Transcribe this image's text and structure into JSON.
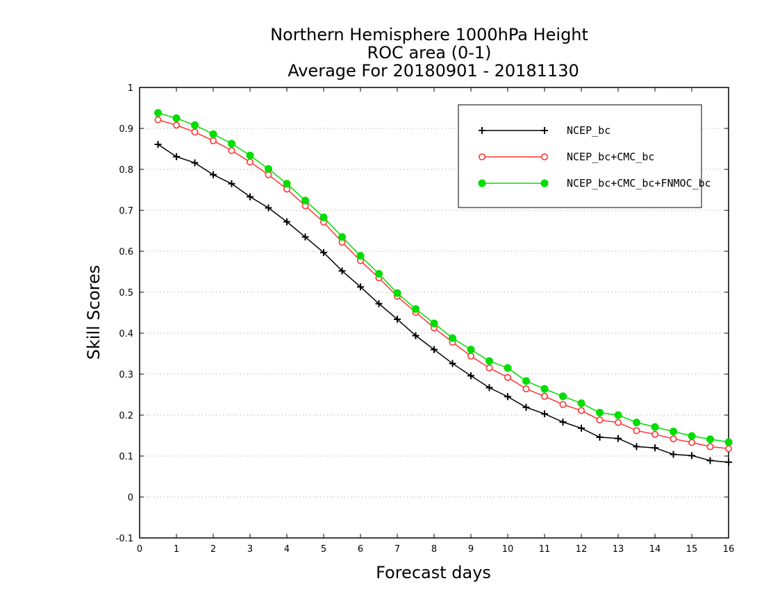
{
  "chart_data": {
    "type": "line",
    "title": [
      "Northern Hemisphere 1000hPa Height",
      "ROC area (0-1)",
      "Average For 20180901 - 20181130"
    ],
    "xlabel": "Forecast days",
    "ylabel": "Skill Scores",
    "xlim": [
      0,
      16
    ],
    "ylim": [
      -0.1,
      1
    ],
    "x_ticks": [
      "0",
      "1",
      "2",
      "3",
      "4",
      "5",
      "6",
      "7",
      "8",
      "9",
      "10",
      "11",
      "12",
      "13",
      "14",
      "15",
      "16"
    ],
    "y_ticks": [
      "-0.1",
      "0",
      "0.1",
      "0.2",
      "0.3",
      "0.4",
      "0.5",
      "0.6",
      "0.7",
      "0.8",
      "0.9",
      "1"
    ],
    "grid": "horizontal dotted",
    "legend_position": "top-right",
    "x": [
      0.5,
      1,
      1.5,
      2,
      2.5,
      3,
      3.5,
      4,
      4.5,
      5,
      5.5,
      6,
      6.5,
      7,
      7.5,
      8,
      8.5,
      9,
      9.5,
      10,
      10.5,
      11,
      11.5,
      12,
      12.5,
      13,
      13.5,
      14,
      14.5,
      15,
      15.5,
      16
    ],
    "series": [
      {
        "name": "NCEP_bc",
        "color": "#000000",
        "marker": "plus",
        "values": [
          0.861,
          0.831,
          0.816,
          0.787,
          0.765,
          0.733,
          0.706,
          0.672,
          0.635,
          0.597,
          0.552,
          0.513,
          0.472,
          0.434,
          0.394,
          0.36,
          0.326,
          0.296,
          0.267,
          0.245,
          0.219,
          0.203,
          0.183,
          0.168,
          0.146,
          0.143,
          0.123,
          0.12,
          0.104,
          0.101,
          0.089,
          0.085
        ]
      },
      {
        "name": "NCEP_bc+CMC_bc",
        "color": "#ff3333",
        "marker": "open-circle",
        "values": [
          0.921,
          0.908,
          0.891,
          0.87,
          0.846,
          0.818,
          0.787,
          0.752,
          0.711,
          0.671,
          0.622,
          0.577,
          0.535,
          0.49,
          0.451,
          0.413,
          0.378,
          0.344,
          0.315,
          0.292,
          0.264,
          0.246,
          0.226,
          0.211,
          0.188,
          0.182,
          0.162,
          0.153,
          0.142,
          0.133,
          0.123,
          0.118
        ]
      },
      {
        "name": "NCEP_bc+CMC_bc+FNMOC_bc",
        "color": "#00dd00",
        "marker": "filled-circle",
        "values": [
          0.938,
          0.925,
          0.908,
          0.886,
          0.863,
          0.834,
          0.801,
          0.765,
          0.724,
          0.683,
          0.635,
          0.589,
          0.545,
          0.498,
          0.459,
          0.424,
          0.388,
          0.36,
          0.332,
          0.315,
          0.283,
          0.264,
          0.246,
          0.229,
          0.206,
          0.2,
          0.182,
          0.171,
          0.16,
          0.149,
          0.141,
          0.134
        ]
      }
    ]
  }
}
